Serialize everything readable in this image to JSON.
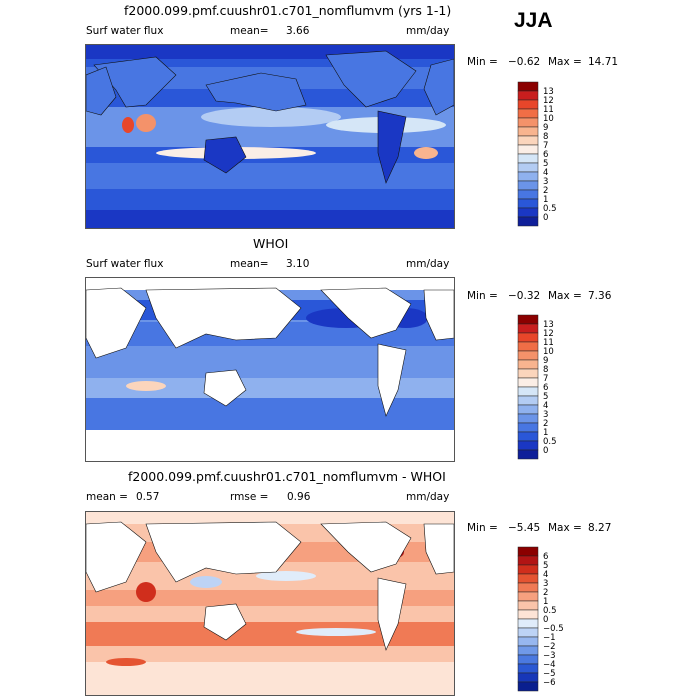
{
  "season": "JJA",
  "panels": [
    {
      "title": "f2000.099.pmf.cuushr01.c701_nomflumvm (yrs 1-1)",
      "left_label": "Surf water flux",
      "stat_label": "mean=",
      "stat_value": "3.66",
      "stat2_label": "",
      "stat2_value": "",
      "units": "mm/day",
      "min_label": "Min =",
      "min_value": "−0.62",
      "max_label": "Max =",
      "max_value": "14.71",
      "colorbar_labels": [
        "13",
        "12",
        "11",
        "10",
        "9",
        "8",
        "7",
        "6",
        "5",
        "4",
        "3",
        "2",
        "1",
        "0.5",
        "0"
      ],
      "colorbar_colors": [
        "#8b0000",
        "#c81e1e",
        "#e8462a",
        "#f06e46",
        "#f4926a",
        "#f8b48f",
        "#fbd5bc",
        "#fbeee6",
        "#d5e6f7",
        "#b3ccf3",
        "#8fb1ee",
        "#6b94e8",
        "#4876e2",
        "#2a57d8",
        "#1a37c4",
        "#0f1f99"
      ]
    },
    {
      "title": "WHOI",
      "left_label": "Surf water flux",
      "stat_label": "mean=",
      "stat_value": "3.10",
      "stat2_label": "",
      "stat2_value": "",
      "units": "mm/day",
      "min_label": "Min =",
      "min_value": "−0.32",
      "max_label": "Max =",
      "max_value": "7.36",
      "colorbar_labels": [
        "13",
        "12",
        "11",
        "10",
        "9",
        "8",
        "7",
        "6",
        "5",
        "4",
        "3",
        "2",
        "1",
        "0.5",
        "0"
      ],
      "colorbar_colors": [
        "#8b0000",
        "#c81e1e",
        "#e8462a",
        "#f06e46",
        "#f4926a",
        "#f8b48f",
        "#fbd5bc",
        "#fbeee6",
        "#d5e6f7",
        "#b3ccf3",
        "#8fb1ee",
        "#6b94e8",
        "#4876e2",
        "#2a57d8",
        "#1a37c4",
        "#0f1f99"
      ]
    },
    {
      "title": "f2000.099.pmf.cuushr01.c701_nomflumvm - WHOI",
      "left_label": "",
      "stat_label": "mean =",
      "stat_value": "0.57",
      "stat2_label": "rmse =",
      "stat2_value": "0.96",
      "units": "mm/day",
      "min_label": "Min =",
      "min_value": "−5.45",
      "max_label": "Max =",
      "max_value": "8.27",
      "colorbar_labels": [
        "6",
        "5",
        "4",
        "3",
        "2",
        "1",
        "0.5",
        "0",
        "−0.5",
        "−1",
        "−2",
        "−3",
        "−4",
        "−5",
        "−6"
      ],
      "colorbar_colors": [
        "#8b0000",
        "#b21414",
        "#d02e1c",
        "#e55432",
        "#f07a55",
        "#f6a07f",
        "#fac4aa",
        "#fde4d6",
        "#e0ecfa",
        "#bdd3f5",
        "#97b7ef",
        "#7099e8",
        "#4b79e0",
        "#2b58d3",
        "#1737b8",
        "#0a1f8f"
      ]
    }
  ]
}
